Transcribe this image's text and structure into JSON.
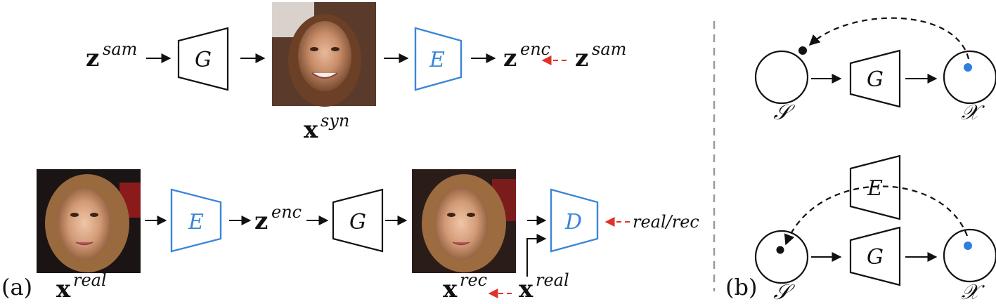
{
  "colors": {
    "ink": "#111111",
    "module_blue": "#3a86d8",
    "arrow_red": "#e0312b",
    "dot_blue": "#2f7fe0",
    "divider": "#999999"
  },
  "panel_a": {
    "label": "(a)",
    "row1": {
      "z_sam": {
        "base": "z",
        "sup": "sam"
      },
      "generator": "G",
      "image_caption": {
        "base": "x",
        "sup": "syn"
      },
      "encoder": "E",
      "z_enc": {
        "base": "z",
        "sup": "enc"
      },
      "z_sam_target": {
        "base": "z",
        "sup": "sam"
      }
    },
    "row2": {
      "x_real": {
        "base": "x",
        "sup": "real"
      },
      "encoder": "E",
      "z_enc": {
        "base": "z",
        "sup": "enc"
      },
      "generator": "G",
      "discriminator": "D",
      "disc_output": "real/rec",
      "x_rec": {
        "base": "x",
        "sup": "rec"
      },
      "x_real_input": {
        "base": "x",
        "sup": "real"
      }
    }
  },
  "panel_b": {
    "label": "(b)",
    "top": {
      "source": "𝒮",
      "generator": "G",
      "target": "𝒳"
    },
    "bottom": {
      "encoder": "E",
      "source": "𝒮",
      "generator": "G",
      "target": "𝒳"
    }
  }
}
